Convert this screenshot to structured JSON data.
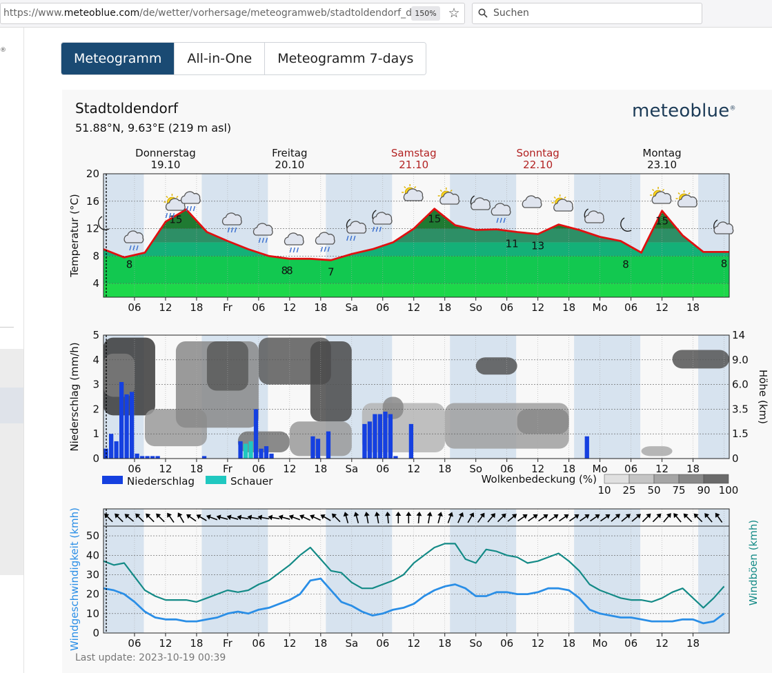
{
  "browser": {
    "url_prefix": "https://www.",
    "url_host": "meteoblue.com",
    "url_path": "/de/wetter/vorhersage/meteogramweb/stadtoldendorf_deut",
    "zoom": "150%",
    "search_placeholder": "Suchen"
  },
  "left_panel": {
    "reg_mark": "®"
  },
  "tabs": [
    {
      "label": "Meteogramm",
      "active": true
    },
    {
      "label": "All-in-One",
      "active": false
    },
    {
      "label": "Meteogramm 7-days",
      "active": false
    }
  ],
  "location": {
    "city": "Stadtoldendorf",
    "coords": "51.88°N, 9.63°E (219 m asl)"
  },
  "brand": {
    "name": "meteoblue",
    "reg": "®"
  },
  "days": [
    {
      "name": "Donnerstag",
      "date": "19.10",
      "weekend": false
    },
    {
      "name": "Freitag",
      "date": "20.10",
      "weekend": false
    },
    {
      "name": "Samstag",
      "date": "21.10",
      "weekend": true
    },
    {
      "name": "Sonntag",
      "date": "22.10",
      "weekend": true
    },
    {
      "name": "Montag",
      "date": "23.10",
      "weekend": false
    }
  ],
  "x_ticks": [
    "06",
    "12",
    "18",
    "Fr",
    "06",
    "12",
    "18",
    "Sa",
    "06",
    "12",
    "18",
    "So",
    "06",
    "12",
    "18",
    "Mo",
    "06",
    "12",
    "18"
  ],
  "colors": {
    "weekend": "#b22222",
    "temp_line": "#e01010",
    "bars_rain": "#1540e0",
    "bars_shower": "#20c8c0",
    "wind": "#2a8ee6",
    "gusts": "#138a86",
    "night_band": "#d7e3ef"
  },
  "chart_data": [
    {
      "type": "area",
      "ylabel": "Temperatur (°C)",
      "ylim": [
        2,
        20
      ],
      "yticks": [
        "4",
        "8",
        "12",
        "16",
        "20"
      ],
      "x_unit": "hours from 19.10 00:00",
      "x": [
        0,
        4,
        8,
        12,
        16,
        20,
        24,
        28,
        32,
        36,
        40,
        44,
        48,
        52,
        56,
        60,
        64,
        68,
        72,
        76,
        80,
        84,
        88,
        92,
        96,
        100,
        104,
        108,
        112,
        116
      ],
      "values": [
        9.0,
        7.8,
        8.5,
        13.0,
        14.8,
        11.5,
        10.2,
        9.0,
        8.0,
        7.6,
        7.6,
        7.4,
        8.3,
        9.0,
        10.0,
        12.0,
        14.9,
        12.5,
        11.8,
        11.9,
        11.5,
        11.2,
        12.6,
        11.8,
        10.8,
        10.2,
        8.5,
        14.6,
        11.0,
        8.6
      ],
      "labels": [
        {
          "text": "8",
          "x": 5
        },
        {
          "text": "15",
          "x": 14
        },
        {
          "text": "8",
          "x": 35
        },
        {
          "text": "8",
          "x": 36
        },
        {
          "text": "7",
          "x": 44
        },
        {
          "text": "15",
          "x": 64
        },
        {
          "text": "11",
          "x": 79
        },
        {
          "text": "13",
          "x": 84
        },
        {
          "text": "8",
          "x": 101
        },
        {
          "text": "15",
          "x": 108
        },
        {
          "text": "8",
          "x": 120
        }
      ],
      "icons": [
        "moon-icon",
        "rain-cloud-icon",
        "sun-cloud-rain-icon",
        "rain-cloud-icon",
        "rain-cloud-icon",
        "rain-cloud-icon",
        "rain-cloud-icon",
        "rain-cloud-icon",
        "moon-rain-icon",
        "moon-rain-icon",
        "sun-cloud-icon",
        "sun-cloud-icon",
        "moon-cloud-icon",
        "rain-cloud-icon",
        "cloud-icon",
        "sun-cloud-icon",
        "moon-cloud-icon",
        "moon-icon",
        "sun-cloud-icon",
        "sun-cloud-icon",
        "moon-cloud-icon"
      ]
    },
    {
      "type": "bar",
      "ylabel": "Niederschlag (mm/h)",
      "y2label": "Höhe (km)",
      "ylim": [
        0,
        5
      ],
      "yticks": [
        "0",
        "1",
        "2",
        "3",
        "4",
        "5"
      ],
      "y2ticks": [
        "0",
        "1.5",
        "3.5",
        "6.0",
        "9.0",
        "14"
      ],
      "legend": [
        {
          "label": "Niederschlag",
          "type": "rain"
        },
        {
          "label": "Schauer",
          "type": "shower"
        }
      ],
      "cloud_legend_title": "Wolkenbedeckung (%)",
      "cloud_legend": [
        "10",
        "25",
        "50",
        "75",
        "90",
        "100"
      ],
      "series": [
        {
          "name": "Niederschlag",
          "x": [
            0,
            1,
            2,
            3,
            4,
            5,
            6,
            7,
            8,
            9,
            10,
            19,
            26,
            29,
            30,
            31,
            32,
            40,
            41,
            43,
            50,
            51,
            52,
            53,
            54,
            55,
            56,
            59,
            93
          ],
          "values": [
            0.4,
            1.0,
            0.7,
            3.1,
            2.6,
            2.7,
            0.2,
            0.1,
            0.1,
            0.1,
            0.1,
            0.1,
            0.7,
            2.0,
            0.4,
            0.5,
            0.2,
            0.9,
            0.8,
            1.1,
            1.4,
            1.5,
            1.8,
            1.8,
            1.9,
            1.8,
            0.1,
            1.4,
            0.9
          ]
        },
        {
          "name": "Schauer",
          "x": [
            27,
            28
          ],
          "values": [
            0.6,
            0.7
          ]
        }
      ]
    },
    {
      "type": "line",
      "ylabel": "Windgeschwindigkeit (kmh)",
      "y2label": "Windböen (kmh)",
      "ylim": [
        0,
        55
      ],
      "yticks": [
        "0",
        "10",
        "20",
        "30",
        "40",
        "50"
      ],
      "x": [
        0,
        2,
        4,
        6,
        8,
        10,
        12,
        14,
        16,
        18,
        20,
        22,
        24,
        26,
        28,
        30,
        32,
        34,
        36,
        38,
        40,
        42,
        44,
        46,
        48,
        50,
        52,
        54,
        56,
        58,
        60,
        62,
        64,
        66,
        68,
        70,
        72,
        74,
        76,
        78,
        80,
        82,
        84,
        86,
        88,
        90,
        92,
        94,
        96,
        98,
        100,
        102,
        104,
        106,
        108,
        110,
        112,
        114,
        116,
        118,
        120
      ],
      "series": [
        {
          "name": "Windgeschwindigkeit",
          "values": [
            23,
            22,
            20,
            16,
            11,
            8,
            7,
            7,
            6,
            6,
            7,
            8,
            10,
            11,
            10,
            12,
            13,
            15,
            17,
            20,
            27,
            28,
            22,
            16,
            14,
            11,
            9,
            10,
            12,
            13,
            15,
            19,
            22,
            24,
            25,
            23,
            19,
            19,
            21,
            21,
            20,
            20,
            21,
            23,
            23,
            22,
            18,
            12,
            10,
            9,
            8,
            8,
            7,
            6,
            6,
            6,
            7,
            7,
            5,
            6,
            10
          ]
        },
        {
          "name": "Windböen",
          "values": [
            37,
            35,
            36,
            29,
            22,
            19,
            17,
            17,
            17,
            16,
            18,
            20,
            22,
            21,
            22,
            25,
            27,
            31,
            35,
            40,
            44,
            38,
            32,
            31,
            26,
            23,
            23,
            25,
            27,
            30,
            36,
            40,
            44,
            46,
            46,
            38,
            36,
            43,
            42,
            40,
            39,
            36,
            37,
            39,
            41,
            37,
            32,
            25,
            22,
            20,
            18,
            17,
            17,
            16,
            18,
            21,
            23,
            18,
            13,
            18,
            24
          ]
        }
      ],
      "wind_dirs": [
        -45,
        -45,
        -50,
        -45,
        -45,
        -45,
        -35,
        -30,
        -55,
        -60,
        -70,
        -75,
        -75,
        -80,
        -80,
        -80,
        -80,
        -75,
        -70,
        -65,
        -65,
        -60,
        -45,
        -15,
        -15,
        -10,
        -10,
        -5,
        0,
        0,
        5,
        10,
        15,
        20,
        25,
        30,
        35,
        40,
        45,
        50,
        55,
        55,
        55,
        55,
        55,
        55,
        55,
        55,
        55,
        50,
        50,
        50,
        45,
        45,
        40,
        -40,
        -45,
        -45,
        -40,
        -35
      ]
    }
  ],
  "last_update": "Last update: 2023-10-19 00:39"
}
